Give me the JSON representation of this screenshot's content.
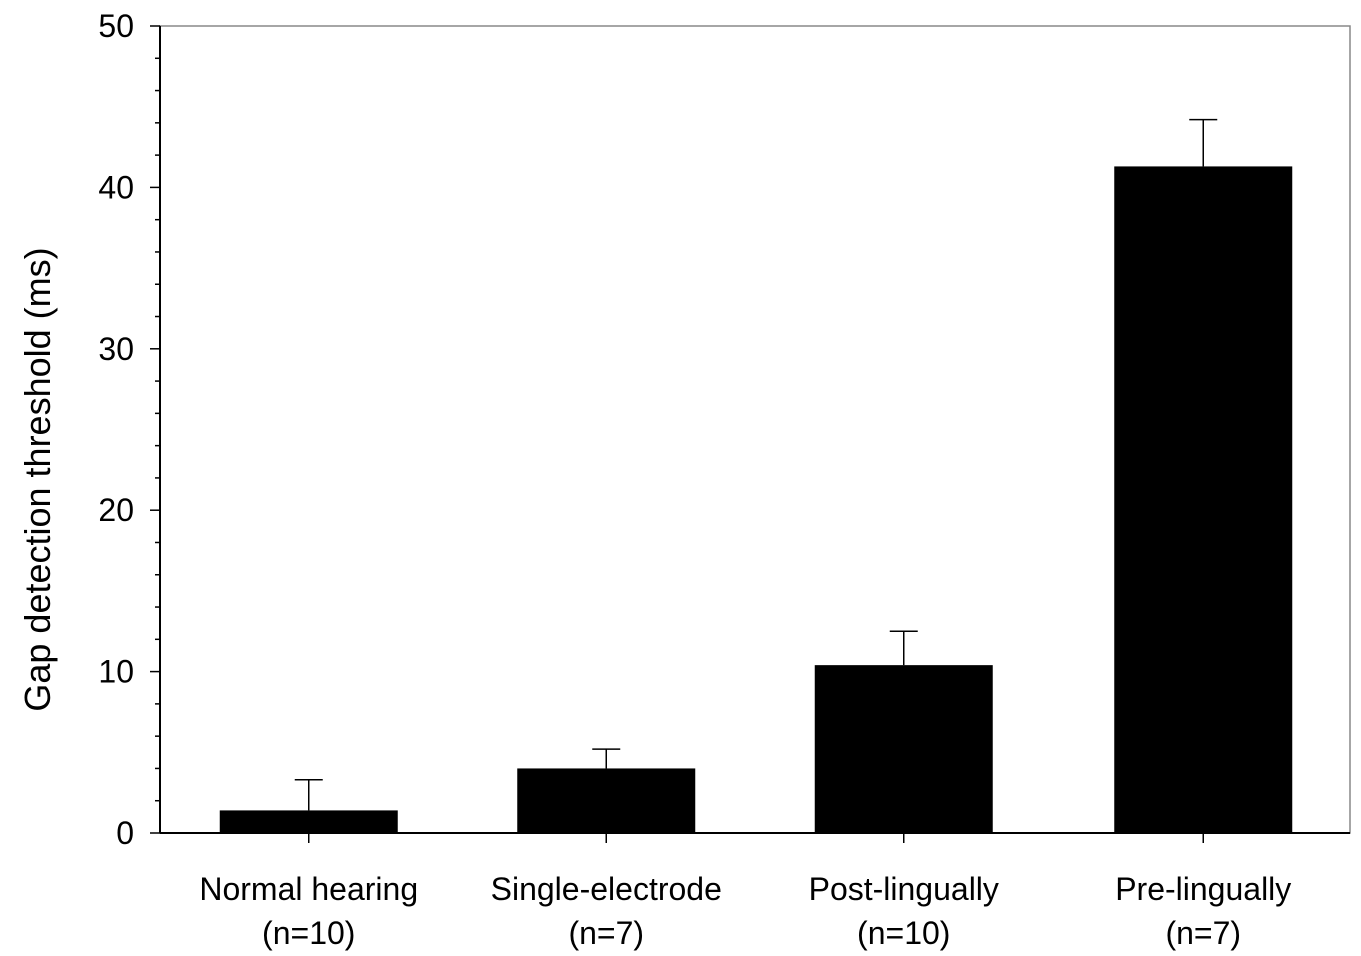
{
  "chart_data": {
    "type": "bar",
    "title": "",
    "xlabel": "",
    "ylabel": "Gap detection threshold (ms)",
    "ylim": [
      0,
      50
    ],
    "yticks": [
      "0",
      "10",
      "20",
      "30",
      "40",
      "50"
    ],
    "minor_tick_step": 2,
    "grid": false,
    "legend": "none",
    "categories": [
      {
        "line1": "Normal hearing",
        "line2": "(n=10)"
      },
      {
        "line1": "Single-electrode",
        "line2": "(n=7)"
      },
      {
        "line1": "Post-lingually",
        "line2": "(n=10)"
      },
      {
        "line1": "Pre-lingually",
        "line2": "(n=7)"
      }
    ],
    "values": [
      1.4,
      4.0,
      10.4,
      41.3
    ],
    "error_upper": [
      1.9,
      1.2,
      2.1,
      2.9
    ],
    "bar_color": "#000000",
    "axis_color": "#000000",
    "frame_color": "#888888"
  }
}
